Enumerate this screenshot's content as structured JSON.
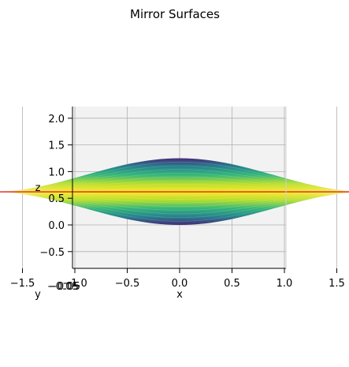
{
  "chart_data": {
    "type": "surface",
    "title": "Mirror Surfaces",
    "xlabel": "x",
    "ylabel": "y",
    "zlabel": "z",
    "x_ticks": [
      "−1.5",
      "−1.0",
      "−0.5",
      "0.0",
      "0.5",
      "1.0",
      "1.5"
    ],
    "x_tick_values": [
      -1.5,
      -1.0,
      -0.5,
      0.0,
      0.5,
      1.0,
      1.5
    ],
    "z_ticks": [
      "−0.5",
      "0.0",
      "0.5",
      "1.0",
      "1.5",
      "2.0"
    ],
    "z_tick_values": [
      -0.5,
      0.0,
      0.5,
      1.0,
      1.5,
      2.0
    ],
    "y_tick_overlap_label": "−0.05",
    "xlim": [
      -2.0,
      2.0
    ],
    "zlim": [
      -0.8,
      2.2
    ],
    "view": "x-z projection (y axis viewed edge-on)",
    "surfaces": [
      {
        "role": "upper mirror",
        "x_range": [
          -1.8,
          1.8
        ],
        "z_at_center": 1.25,
        "z_at_edge": 0.62,
        "colormap": "viridis"
      },
      {
        "role": "lower mirror",
        "x_range": [
          -1.8,
          1.8
        ],
        "z_at_center": 0.0,
        "z_at_edge": 0.62,
        "colormap": "viridis"
      }
    ],
    "centerline": {
      "z": 0.62,
      "x_range": [
        -1.8,
        1.8
      ],
      "color": "#d62728"
    },
    "pane_color": "#f2f2f2",
    "grid": true,
    "legend": "none"
  }
}
